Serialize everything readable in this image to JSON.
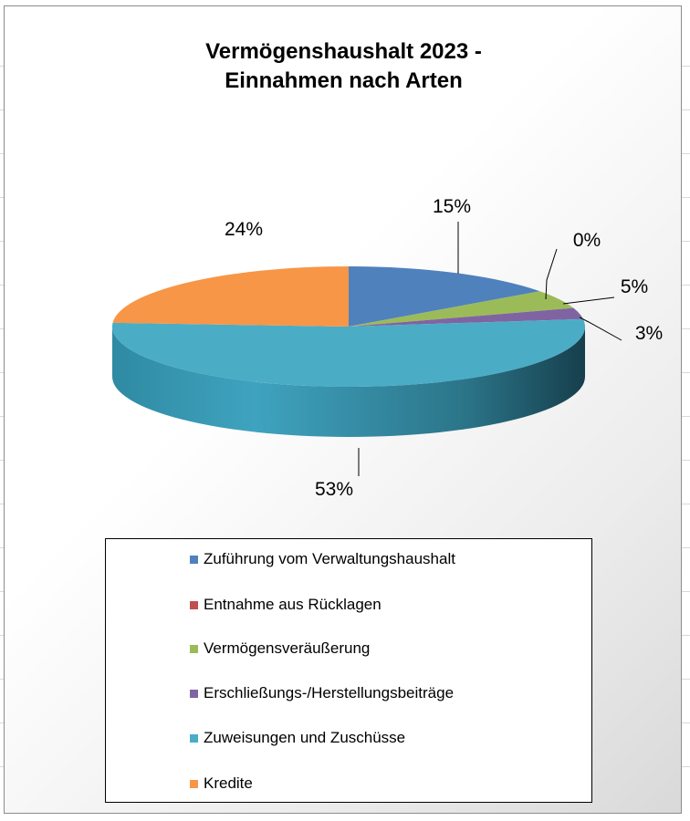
{
  "chart_data": {
    "type": "pie",
    "title": [
      "Vermögenshaushalt 2023 -",
      "Einnahmen nach Arten"
    ],
    "style": "3d",
    "legend_position": "bottom",
    "categories": [
      "Zuführung vom Verwaltungshaushalt",
      "Entnahme aus Rücklagen",
      "Vermögensveräußerung",
      "Erschließungs-/Herstellungsbeiträge",
      "Zuweisungen und Zuschüsse",
      "Kredite"
    ],
    "values": [
      15,
      0,
      5,
      3,
      53,
      24
    ],
    "labels": [
      "15%",
      "0%",
      "5%",
      "3%",
      "53%",
      "24%"
    ],
    "colors": [
      "#4f81bd",
      "#c0504d",
      "#9bbb59",
      "#8064a2",
      "#4bacc6",
      "#f79646"
    ]
  }
}
